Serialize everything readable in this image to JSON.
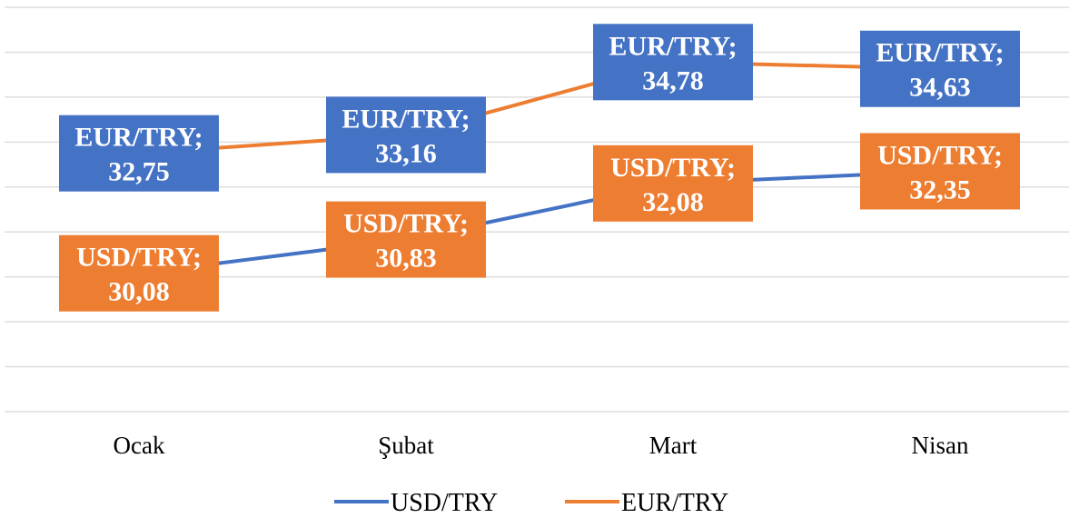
{
  "chart_data": {
    "type": "line",
    "categories": [
      "Ocak",
      "Şubat",
      "Mart",
      "Nisan"
    ],
    "series": [
      {
        "name": "USD/TRY",
        "color": "#4472c4",
        "label_fill": "#ed7d31",
        "values": [
          30.08,
          30.83,
          32.08,
          32.35
        ],
        "value_labels": [
          "USD/TRY; 30,08",
          "USD/TRY; 30,83",
          "USD/TRY; 32,08",
          "USD/TRY; 32,35"
        ]
      },
      {
        "name": "EUR/TRY",
        "color": "#ed7d31",
        "label_fill": "#4472c4",
        "values": [
          32.75,
          33.16,
          34.78,
          34.63
        ],
        "value_labels": [
          "EUR/TRY; 32,75",
          "EUR/TRY; 33,16",
          "EUR/TRY; 34,78",
          "EUR/TRY; 34,63"
        ]
      }
    ],
    "ylim": [
      27,
      36
    ],
    "yticks": [
      27,
      28,
      29,
      30,
      31,
      32,
      33,
      34,
      35,
      36
    ],
    "grid": true,
    "legend": "bottom"
  }
}
